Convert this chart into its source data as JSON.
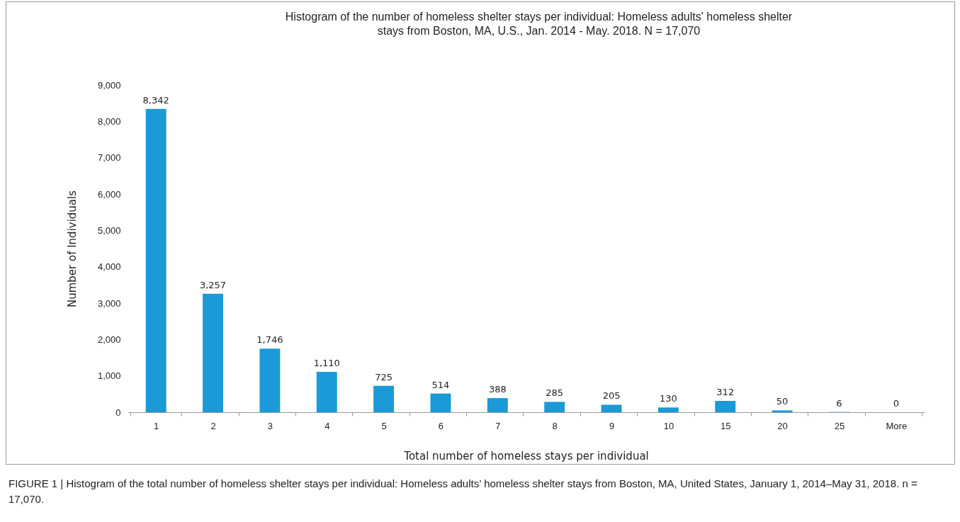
{
  "chart_data": {
    "type": "bar",
    "title": "Histogram of the number of homeless shelter stays per individual: Homeless adults' homeless shelter stays from Boston, MA, U.S., Jan. 2014 - May. 2018. N = 17,070",
    "xlabel": "Total number of homeless stays per individual",
    "ylabel": "Number of Individuals",
    "categories": [
      "1",
      "2",
      "3",
      "4",
      "5",
      "6",
      "7",
      "8",
      "9",
      "10",
      "15",
      "20",
      "25",
      "More"
    ],
    "values": [
      8342,
      3257,
      1746,
      1110,
      725,
      514,
      388,
      285,
      205,
      130,
      312,
      50,
      6,
      0
    ],
    "value_labels": [
      "8,342",
      "3,257",
      "1,746",
      "1,110",
      "725",
      "514",
      "388",
      "285",
      "205",
      "130",
      "312",
      "50",
      "6",
      "0"
    ],
    "color": "#1a9ad6",
    "ylim": [
      0,
      9000
    ],
    "yticks": [
      0,
      {
        "value": 1000,
        "label": "1,000"
      },
      {
        "value": 2000,
        "label": "2,000"
      },
      {
        "value": 3000,
        "label": "3,000"
      },
      {
        "value": 4000,
        "label": "4,000"
      },
      {
        "value": 5000,
        "label": "5,000"
      },
      {
        "value": 6000,
        "label": "6,000"
      },
      {
        "value": 7000,
        "label": "7,000"
      },
      {
        "value": 8000,
        "label": "8,000"
      },
      {
        "value": 9000,
        "label": "9,000"
      }
    ],
    "grid": false,
    "annotations": [
      "FIGURE 1 | Histogram of the total number of homeless shelter stays per individual: Homeless adults’ homeless shelter stays from Boston, MA, United States, January 1, 2014–May 31, 2018. n = 17,070."
    ]
  }
}
